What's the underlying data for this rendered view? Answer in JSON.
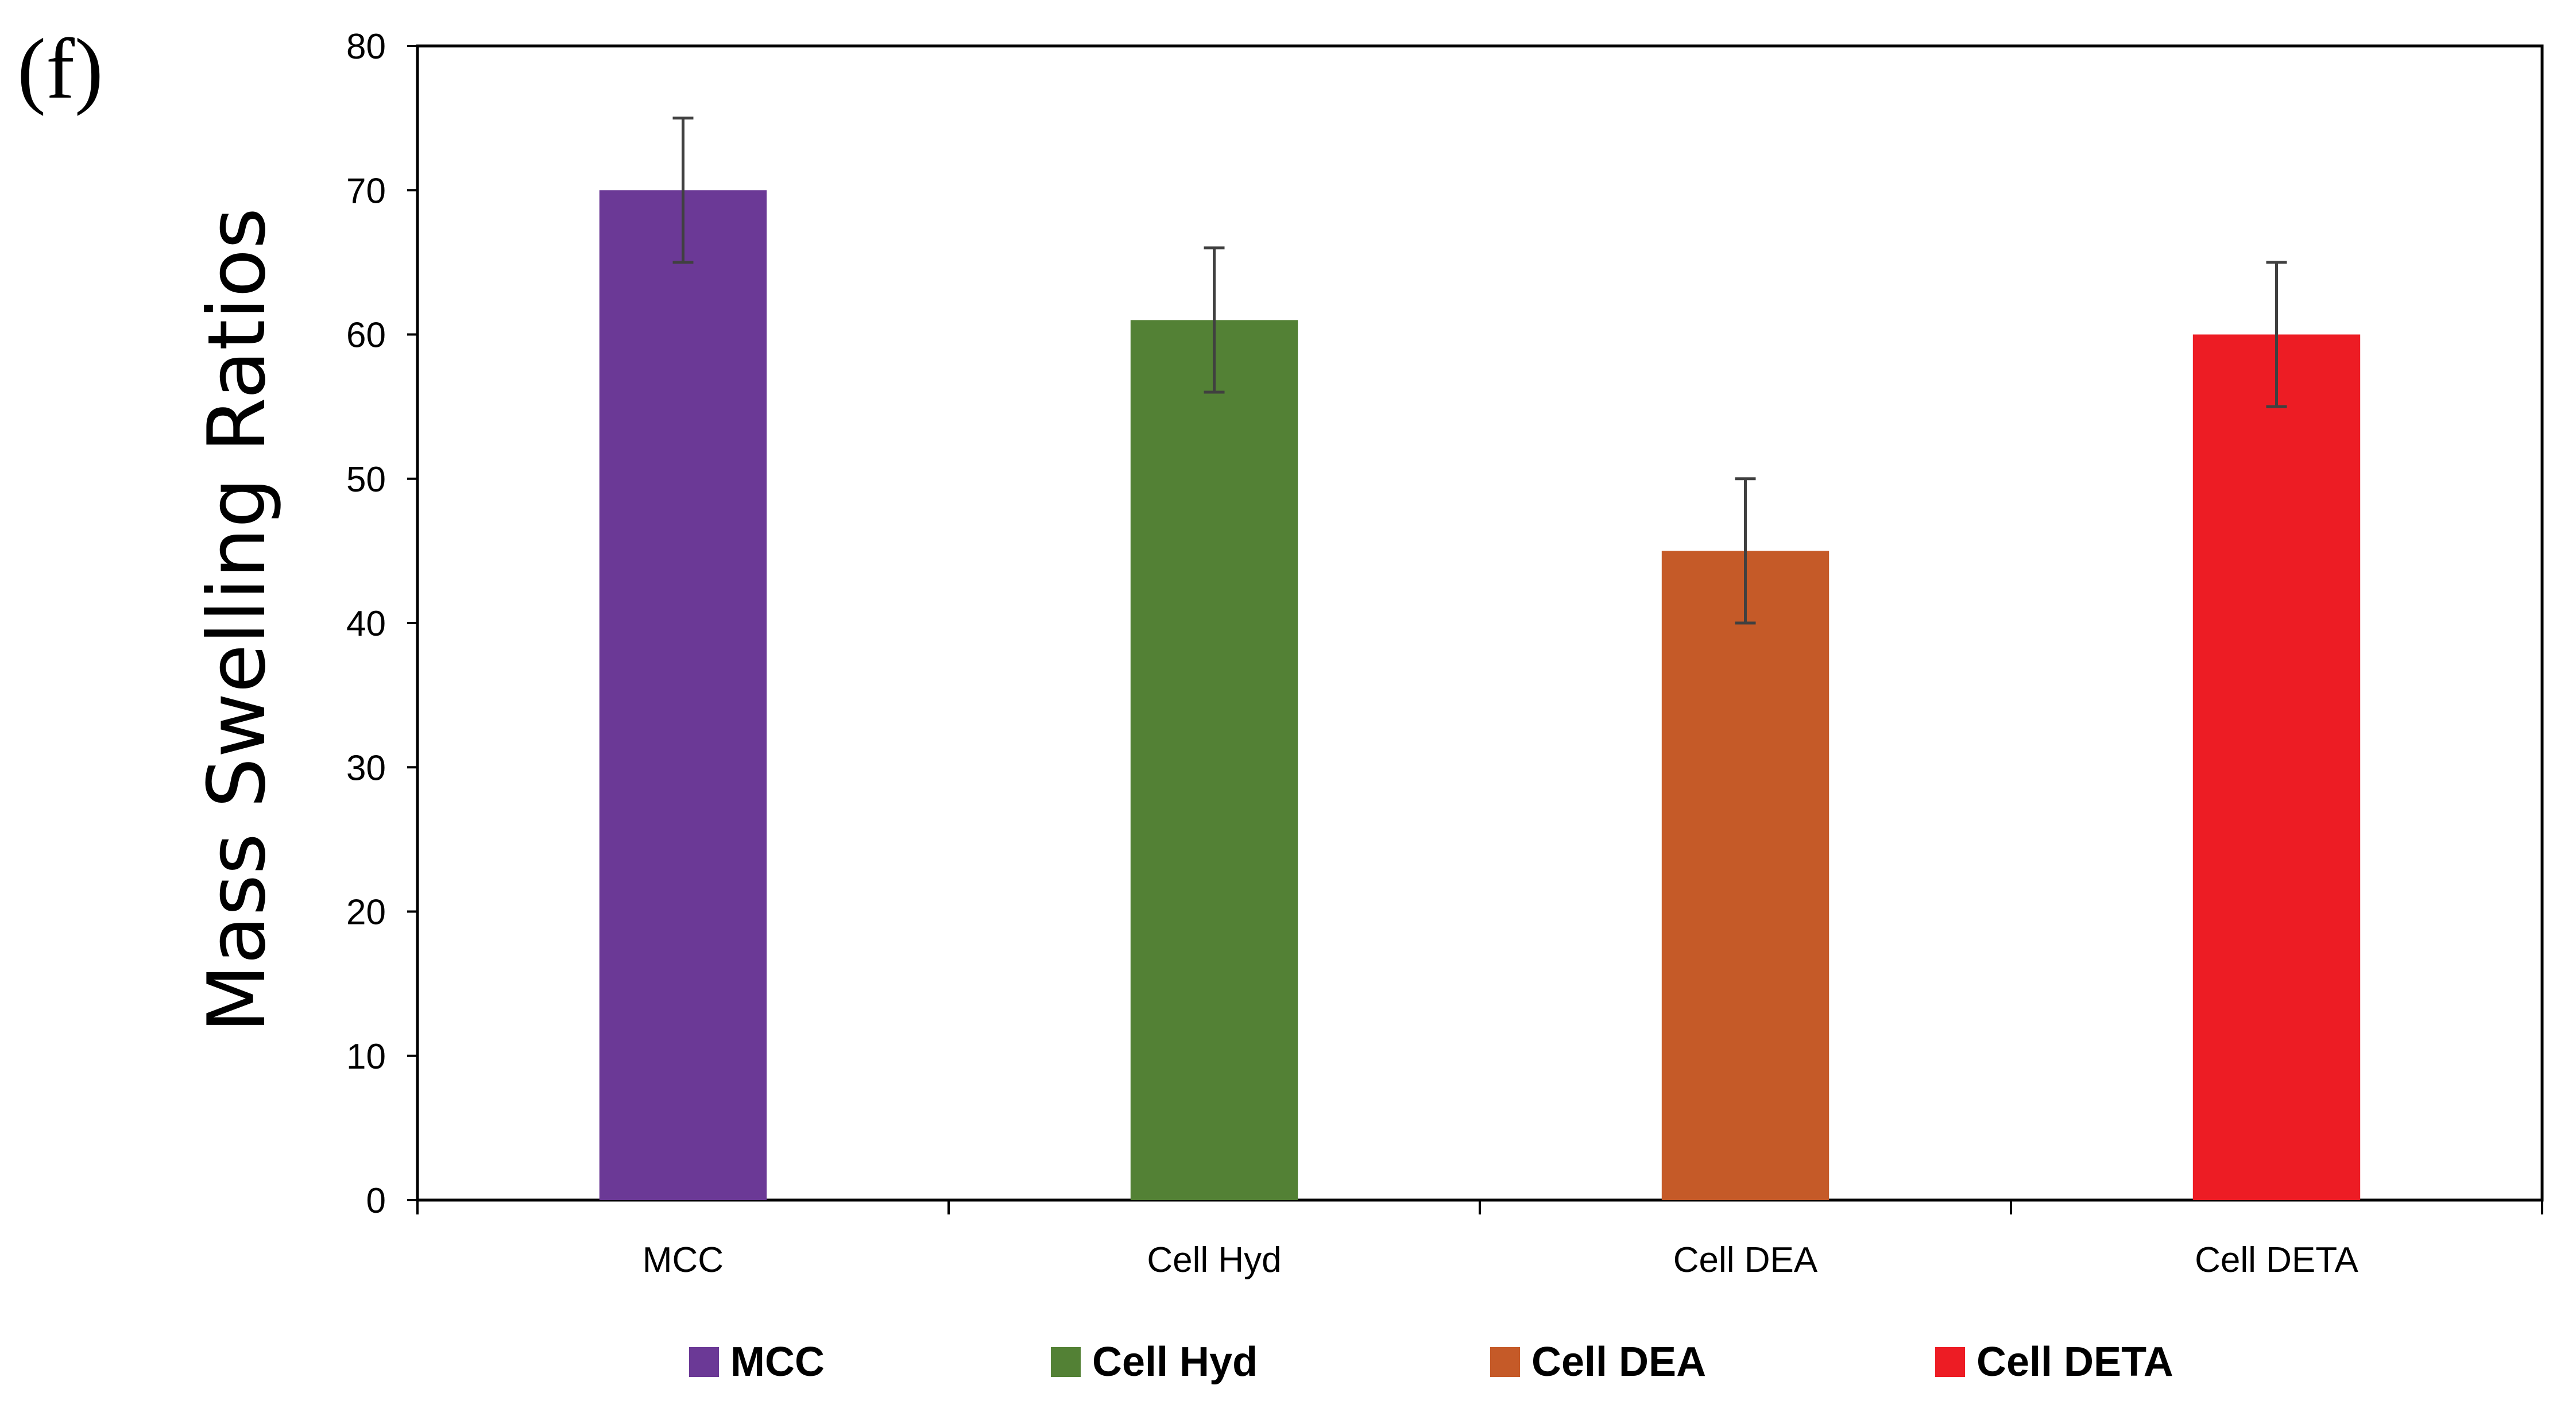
{
  "panel_label": "(f)",
  "chart_data": {
    "type": "bar",
    "title": "",
    "xlabel": "",
    "ylabel": "Mass Swelling Ratios",
    "ylim": [
      0,
      80
    ],
    "yticks": [
      0,
      10,
      20,
      30,
      40,
      50,
      60,
      70,
      80
    ],
    "ytick_labels": [
      "0",
      "10",
      "20",
      "30",
      "40",
      "50",
      "60",
      "70",
      "80"
    ],
    "categories": [
      "MCC",
      "Cell Hyd",
      "Cell DEA",
      "Cell DETA"
    ],
    "values": [
      70,
      61,
      45,
      60
    ],
    "errors": [
      5,
      5,
      5,
      5
    ],
    "colors": [
      "#6b3996",
      "#538135",
      "#c55a28",
      "#ed1c24"
    ],
    "error_color": "#404040",
    "grid": false,
    "legend": {
      "position": "bottom",
      "entries": [
        "MCC",
        "Cell Hyd",
        "Cell DEA",
        "Cell DETA"
      ]
    }
  }
}
